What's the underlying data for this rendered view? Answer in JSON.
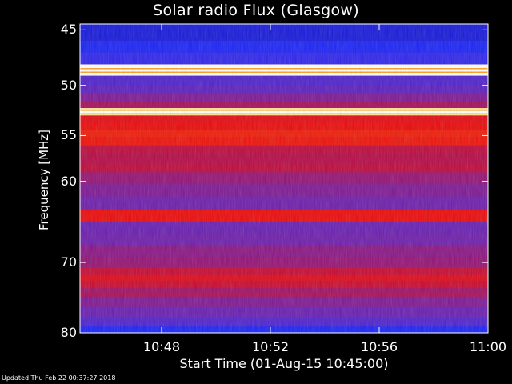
{
  "chart_data": {
    "type": "heatmap",
    "title": "Solar radio Flux (Glasgow)",
    "xlabel": "Start Time (01-Aug-15 10:45:00)",
    "ylabel": "Frequency [MHz]",
    "x_ticks": [
      "10:48",
      "10:52",
      "10:56",
      "11:00"
    ],
    "x_tick_minutes": [
      3,
      7,
      11,
      15
    ],
    "x_range_minutes": [
      0,
      15
    ],
    "y_ticks": [
      45,
      50,
      55,
      60,
      70,
      80
    ],
    "y_range": [
      44.5,
      80
    ],
    "y_scale": "log",
    "colormap": "black-blue-purple-red-yellow-white",
    "bands": [
      {
        "freq": 45.4,
        "intensity": 0.25
      },
      {
        "freq": 46.5,
        "intensity": 0.3
      },
      {
        "freq": 47.5,
        "intensity": 0.35
      },
      {
        "freq": 48.6,
        "intensity": 1.0
      },
      {
        "freq": 49.6,
        "intensity": 0.4
      },
      {
        "freq": 50.5,
        "intensity": 0.42
      },
      {
        "freq": 51.2,
        "intensity": 0.48
      },
      {
        "freq": 51.8,
        "intensity": 0.55
      },
      {
        "freq": 52.6,
        "intensity": 0.95
      },
      {
        "freq": 53.3,
        "intensity": 0.7
      },
      {
        "freq": 54.0,
        "intensity": 0.72
      },
      {
        "freq": 54.8,
        "intensity": 0.74
      },
      {
        "freq": 55.6,
        "intensity": 0.73
      },
      {
        "freq": 56.5,
        "intensity": 0.6
      },
      {
        "freq": 57.5,
        "intensity": 0.58
      },
      {
        "freq": 58.5,
        "intensity": 0.6
      },
      {
        "freq": 59.5,
        "intensity": 0.52
      },
      {
        "freq": 61.0,
        "intensity": 0.48
      },
      {
        "freq": 62.5,
        "intensity": 0.45
      },
      {
        "freq": 64.1,
        "intensity": 0.72
      },
      {
        "freq": 65.5,
        "intensity": 0.44
      },
      {
        "freq": 67.0,
        "intensity": 0.45
      },
      {
        "freq": 68.5,
        "intensity": 0.5
      },
      {
        "freq": 70.0,
        "intensity": 0.52
      },
      {
        "freq": 71.3,
        "intensity": 0.62
      },
      {
        "freq": 72.0,
        "intensity": 0.68
      },
      {
        "freq": 73.0,
        "intensity": 0.63
      },
      {
        "freq": 74.0,
        "intensity": 0.55
      },
      {
        "freq": 75.5,
        "intensity": 0.48
      },
      {
        "freq": 77.0,
        "intensity": 0.44
      },
      {
        "freq": 78.5,
        "intensity": 0.4
      },
      {
        "freq": 79.6,
        "intensity": 0.3
      }
    ]
  },
  "footer": "Updated Thu Feb 22 00:37:27 2018"
}
